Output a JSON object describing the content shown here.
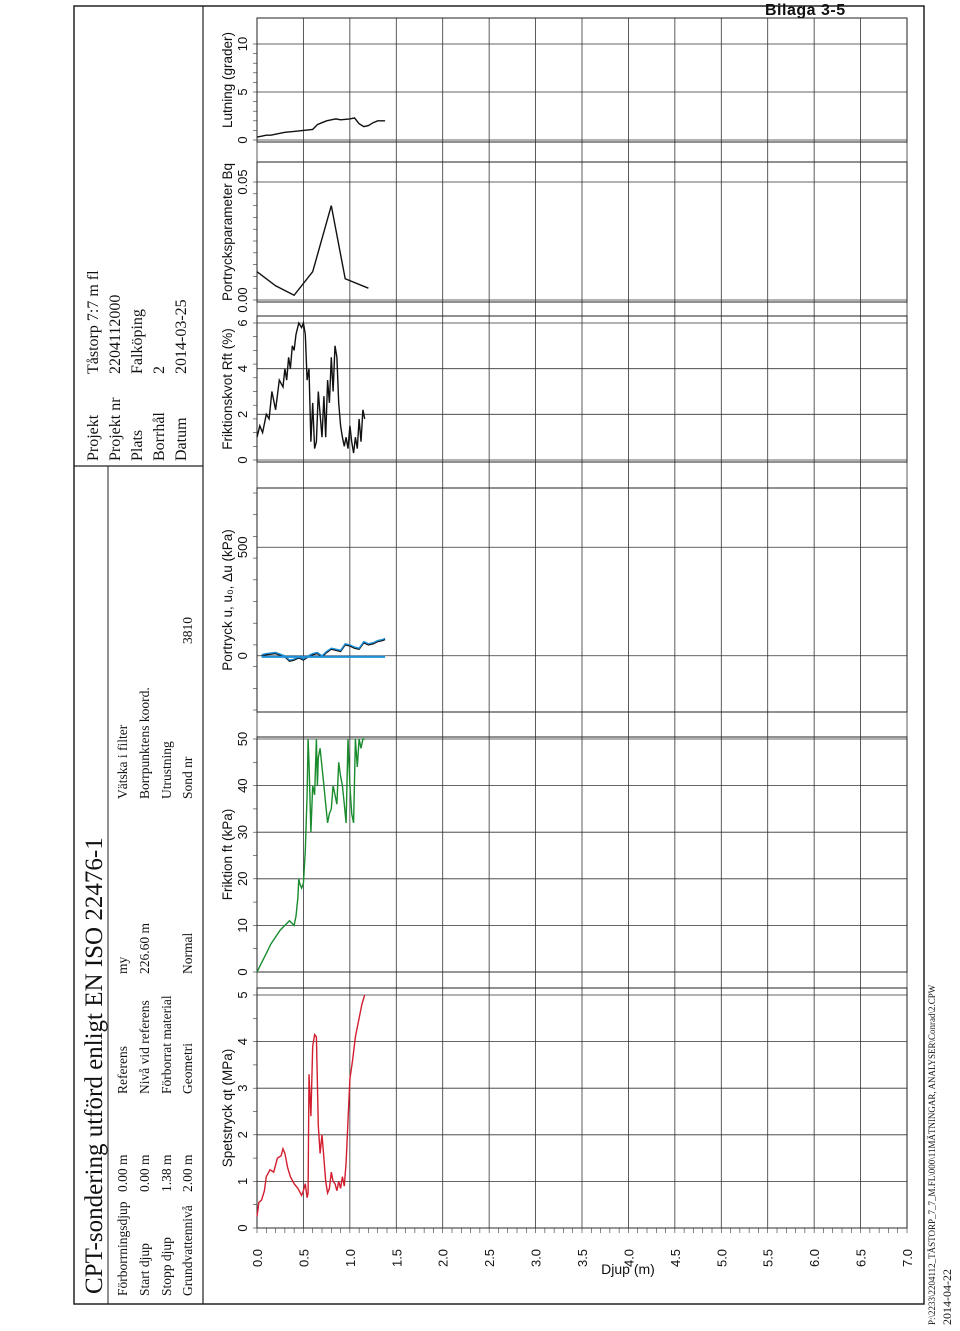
{
  "bilaga": "Bilaga 3-5",
  "footer": {
    "path": "P:\\2233\\2204112_TÅSTORP_7_7_M.FL\\000\\11MÄTNINGAR, ANALYSER\\Conrad\\2.CPW",
    "date": "2014-04-22"
  },
  "header": {
    "title": "CPT-sondering utförd enligt EN ISO 22476-1",
    "col1": [
      {
        "label": "Förborrningsdjup",
        "value": "0.00 m"
      },
      {
        "label": "Start djup",
        "value": "0.00 m"
      },
      {
        "label": "Stopp djup",
        "value": "1.38 m"
      },
      {
        "label": "Grundvattennivå",
        "value": "2.00 m"
      }
    ],
    "col2": [
      {
        "label": "Referens",
        "value": "my"
      },
      {
        "label": "Nivå vid referens",
        "value": "226.60 m"
      },
      {
        "label": "Förborrat material",
        "value": ""
      },
      {
        "label": "Geometri",
        "value": "Normal"
      }
    ],
    "col3": [
      {
        "label": "Vätska i filter",
        "value": ""
      },
      {
        "label": "Borrpunktens koord.",
        "value": ""
      },
      {
        "label": "Utrustning",
        "value": ""
      },
      {
        "label": "Sond nr",
        "value": "3810"
      }
    ],
    "col4": [
      {
        "label": "Projekt",
        "value": "Tåstorp 7:7 m fl"
      },
      {
        "label": "Projekt nr",
        "value": "2204112000"
      },
      {
        "label": "Plats",
        "value": "Falköping"
      },
      {
        "label": "Borrhål",
        "value": "2"
      },
      {
        "label": "Datum",
        "value": "2014-03-25"
      }
    ]
  },
  "chart_data": {
    "type": "line",
    "depth_axis": {
      "label": "Djup (m)",
      "range": [
        0,
        7.0
      ],
      "ticks": [
        "0.0",
        "0.5",
        "1.0",
        "1.5",
        "2.0",
        "2.5",
        "3.0",
        "3.5",
        "4.0",
        "4.5",
        "5.0",
        "5.5",
        "6.0",
        "6.5",
        "7.0"
      ]
    },
    "panels": [
      {
        "key": "qt",
        "label": "Spetstryck qt (MPa)",
        "range": [
          0,
          5
        ],
        "ticks": [
          "0",
          "1",
          "2",
          "3",
          "4",
          "5"
        ],
        "color": "#d21e2e",
        "series": [
          {
            "depth": [
              0.0,
              0.02,
              0.05,
              0.08,
              0.1,
              0.14,
              0.18,
              0.22,
              0.26,
              0.28,
              0.3,
              0.33,
              0.36,
              0.4,
              0.44,
              0.48,
              0.5,
              0.52,
              0.54,
              0.55,
              0.56,
              0.58,
              0.6,
              0.62,
              0.64,
              0.66,
              0.68,
              0.7,
              0.72,
              0.74,
              0.76,
              0.78,
              0.8,
              0.82,
              0.84,
              0.86,
              0.88,
              0.9,
              0.92,
              0.94,
              0.96,
              0.98,
              1.0,
              1.03,
              1.06,
              1.1,
              1.13,
              1.16
            ],
            "values": [
              0.25,
              0.55,
              0.6,
              0.8,
              1.1,
              1.25,
              1.2,
              1.5,
              1.55,
              1.7,
              1.6,
              1.3,
              1.1,
              0.95,
              0.85,
              0.7,
              0.8,
              0.95,
              0.65,
              0.75,
              3.3,
              2.4,
              3.9,
              4.15,
              4.1,
              2.2,
              1.6,
              2.0,
              1.5,
              1.0,
              0.75,
              0.85,
              1.2,
              1.0,
              0.95,
              0.8,
              1.0,
              0.85,
              1.1,
              0.9,
              1.4,
              2.3,
              3.2,
              3.6,
              4.1,
              4.5,
              4.8,
              5.0
            ]
          }
        ]
      },
      {
        "key": "ft",
        "label": "Friktion ft (kPa)",
        "range": [
          0,
          50
        ],
        "ticks": [
          "0",
          "10",
          "20",
          "30",
          "40",
          "50"
        ],
        "color": "#1a8c2e",
        "series": [
          {
            "depth": [
              0.0,
              0.05,
              0.1,
              0.15,
              0.2,
              0.25,
              0.3,
              0.35,
              0.4,
              0.42,
              0.44,
              0.45,
              0.46,
              0.48,
              0.5,
              0.52,
              0.54,
              0.55,
              0.56,
              0.58,
              0.6,
              0.62,
              0.64,
              0.65,
              0.66,
              0.68,
              0.7,
              0.72,
              0.74,
              0.76,
              0.78,
              0.8,
              0.82,
              0.84,
              0.86,
              0.88,
              0.9,
              0.92,
              0.94,
              0.96,
              0.98,
              1.0,
              1.02,
              1.04,
              1.06,
              1.08,
              1.1,
              1.12,
              1.14,
              1.16
            ],
            "values": [
              0,
              2,
              4,
              6,
              7.5,
              9,
              10,
              11,
              10,
              12,
              16,
              20,
              19,
              18,
              19,
              26,
              38,
              50,
              45,
              30,
              40,
              38,
              50,
              40,
              46,
              48,
              44,
              40,
              36,
              32,
              34,
              35,
              40,
              38,
              36,
              45,
              42,
              40,
              36,
              32,
              50,
              40,
              34,
              32,
              50,
              44,
              50,
              48,
              50,
              50
            ]
          }
        ]
      },
      {
        "key": "u",
        "label": "Portryck u, u₀, Δu (kPa)",
        "range": [
          -250,
          750
        ],
        "ticks": [
          "0",
          "500"
        ],
        "tick_values": [
          0,
          500
        ],
        "series": [
          {
            "name": "u",
            "color": "#111111",
            "depth": [
              0.05,
              0.1,
              0.2,
              0.3,
              0.35,
              0.4,
              0.45,
              0.5,
              0.55,
              0.6,
              0.65,
              0.7,
              0.75,
              0.8,
              0.85,
              0.9,
              0.95,
              1.0,
              1.05,
              1.1,
              1.15,
              1.2,
              1.25,
              1.3,
              1.35,
              1.38
            ],
            "values": [
              0,
              5,
              10,
              -5,
              -25,
              -20,
              -10,
              -20,
              -5,
              5,
              10,
              -5,
              15,
              30,
              25,
              20,
              50,
              45,
              35,
              30,
              60,
              50,
              55,
              65,
              70,
              75
            ]
          },
          {
            "name": "u₀",
            "color": "#1f8fd6",
            "depth": [
              0.05,
              0.2,
              0.4,
              0.6,
              0.8,
              1.0,
              1.2,
              1.38
            ],
            "values": [
              -5,
              -5,
              -5,
              -5,
              -5,
              -5,
              -5,
              -5
            ]
          },
          {
            "name": "Δu",
            "color": "#1f8fd6",
            "depth": [
              0.05,
              0.1,
              0.2,
              0.3,
              0.35,
              0.4,
              0.45,
              0.5,
              0.55,
              0.6,
              0.65,
              0.7,
              0.75,
              0.8,
              0.85,
              0.9,
              0.95,
              1.0,
              1.05,
              1.1,
              1.15,
              1.2,
              1.25,
              1.3,
              1.35,
              1.38
            ],
            "values": [
              5,
              10,
              15,
              0,
              -20,
              -15,
              -5,
              -15,
              0,
              10,
              15,
              0,
              20,
              35,
              30,
              25,
              55,
              50,
              40,
              35,
              65,
              55,
              60,
              70,
              75,
              80
            ]
          }
        ]
      },
      {
        "key": "rf",
        "label": "Friktionskvot Rft (%)",
        "range": [
          0,
          6
        ],
        "ticks": [
          "0",
          "2",
          "4",
          "6"
        ],
        "color": "#111111",
        "series": [
          {
            "depth": [
              0.0,
              0.03,
              0.06,
              0.1,
              0.13,
              0.16,
              0.2,
              0.24,
              0.28,
              0.3,
              0.32,
              0.34,
              0.36,
              0.38,
              0.4,
              0.42,
              0.45,
              0.48,
              0.5,
              0.52,
              0.54,
              0.56,
              0.58,
              0.6,
              0.62,
              0.64,
              0.66,
              0.68,
              0.7,
              0.72,
              0.74,
              0.76,
              0.78,
              0.8,
              0.82,
              0.84,
              0.86,
              0.88,
              0.9,
              0.92,
              0.94,
              0.96,
              0.98,
              1.0,
              1.02,
              1.04,
              1.06,
              1.08,
              1.1,
              1.12,
              1.14,
              1.16
            ],
            "values": [
              1.0,
              1.5,
              1.2,
              2.0,
              1.8,
              3.0,
              2.2,
              3.5,
              3.2,
              4.0,
              3.5,
              4.5,
              4.0,
              5.0,
              4.8,
              5.5,
              6.0,
              5.8,
              6.0,
              5.5,
              3.5,
              4.0,
              0.8,
              2.5,
              0.5,
              0.8,
              3.0,
              2.0,
              1.0,
              2.8,
              1.0,
              3.5,
              2.5,
              4.5,
              3.0,
              5.0,
              4.5,
              2.5,
              1.5,
              1.0,
              0.6,
              1.0,
              0.5,
              1.5,
              0.8,
              0.3,
              1.0,
              0.5,
              1.8,
              0.8,
              2.2,
              1.8
            ]
          }
        ]
      },
      {
        "key": "bq",
        "label": "Portrycksparameter Bq",
        "range": [
          0,
          0.05
        ],
        "ticks": [
          "0.00",
          "0.05"
        ],
        "color": "#111111",
        "series": [
          {
            "depth": [
              0.0,
              0.2,
              0.4,
              0.6,
              0.8,
              0.95,
              1.2
            ],
            "values": [
              0.012,
              0.006,
              0.002,
              0.012,
              0.04,
              0.009,
              0.005
            ]
          }
        ]
      },
      {
        "key": "lutning",
        "label": "Lutning (grader)",
        "range": [
          0,
          10
        ],
        "ticks": [
          "0",
          "5",
          "10"
        ],
        "color": "#111111",
        "series": [
          {
            "depth": [
              0.0,
              0.05,
              0.1,
              0.15,
              0.2,
              0.3,
              0.4,
              0.5,
              0.6,
              0.65,
              0.7,
              0.75,
              0.8,
              0.85,
              0.9,
              1.0,
              1.05,
              1.1,
              1.15,
              1.2,
              1.25,
              1.3,
              1.38
            ],
            "values": [
              0.3,
              0.4,
              0.5,
              0.5,
              0.6,
              0.8,
              0.9,
              1.0,
              1.1,
              1.6,
              1.8,
              2.0,
              2.1,
              2.2,
              2.1,
              2.2,
              2.3,
              1.7,
              1.4,
              1.5,
              1.8,
              2.0,
              2.0
            ]
          }
        ]
      }
    ]
  }
}
